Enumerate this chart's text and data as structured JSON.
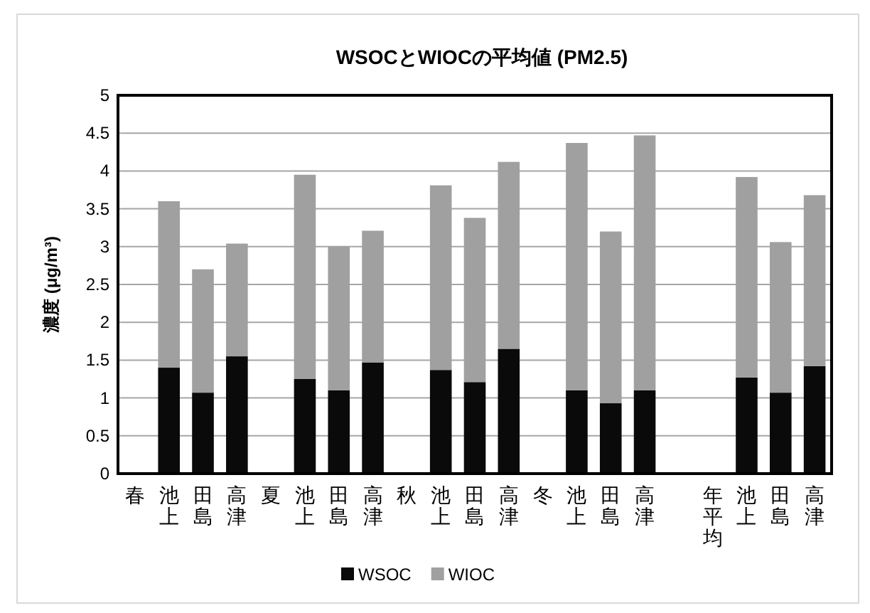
{
  "chart_data": {
    "type": "bar",
    "stacked": true,
    "title": "WSOCとWIOCの平均値 (PM2.5)",
    "ylabel": "濃度 (μg/m³)",
    "categories": [
      "春",
      "池上",
      "田島",
      "高津",
      "夏",
      "池上",
      "田島",
      "高津",
      "秋",
      "池上",
      "田島",
      "高津",
      "冬",
      "池上",
      "田島",
      "高津",
      null,
      "年平均",
      "池上",
      "田島",
      "高津"
    ],
    "series": [
      {
        "name": "WSOC",
        "color": "#0a0a0a",
        "values": [
          null,
          1.4,
          1.07,
          1.55,
          null,
          1.25,
          1.1,
          1.47,
          null,
          1.37,
          1.21,
          1.65,
          null,
          1.1,
          0.93,
          1.1,
          null,
          null,
          1.27,
          1.07,
          1.42
        ]
      },
      {
        "name": "WIOC",
        "color": "#a0a0a0",
        "values": [
          null,
          2.2,
          1.63,
          1.49,
          null,
          2.7,
          1.9,
          1.74,
          null,
          2.44,
          2.17,
          2.47,
          null,
          3.27,
          2.27,
          3.37,
          null,
          null,
          2.65,
          1.99,
          2.26
        ]
      }
    ],
    "ylim": [
      0,
      5
    ],
    "yticks": [
      0,
      0.5,
      1,
      1.5,
      2,
      2.5,
      3,
      3.5,
      4,
      4.5,
      5
    ],
    "grid": "y",
    "legend": "bottom"
  }
}
